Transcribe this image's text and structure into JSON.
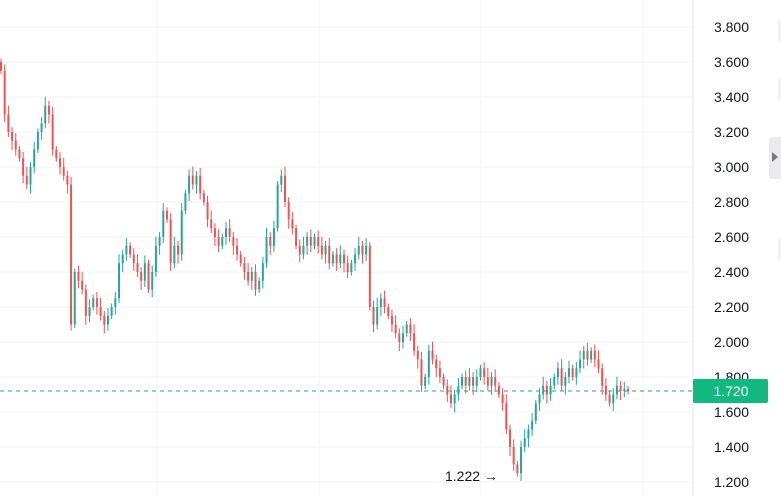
{
  "chart_data": {
    "type": "candlestick",
    "y_axis": {
      "ticks": [
        "3.800",
        "3.600",
        "3.400",
        "3.200",
        "3.000",
        "2.800",
        "2.600",
        "2.400",
        "2.200",
        "2.000",
        "1.800",
        "1.600",
        "1.400",
        "1.200"
      ],
      "range": [
        1.16,
        3.86
      ],
      "side": "right"
    },
    "grid": true,
    "current_price": {
      "label": "1.720",
      "value": 1.72
    },
    "annotation": {
      "label": "1.222 →",
      "value": 1.222
    },
    "colors": {
      "up": "#26a69a",
      "down": "#ef5350",
      "grid": "#f0f3fa",
      "axis_text": "#131722",
      "price_line": "#26a69a",
      "price_label_bg": "#11b981"
    },
    "closes": [
      3.55,
      3.3,
      3.2,
      3.15,
      3.1,
      3.05,
      2.95,
      2.9,
      3.0,
      3.1,
      3.2,
      3.25,
      3.35,
      3.3,
      3.1,
      3.05,
      3.0,
      2.95,
      2.9,
      2.1,
      2.4,
      2.35,
      2.3,
      2.15,
      2.2,
      2.25,
      2.2,
      2.15,
      2.1,
      2.15,
      2.2,
      2.25,
      2.45,
      2.5,
      2.55,
      2.5,
      2.45,
      2.4,
      2.35,
      2.45,
      2.3,
      2.4,
      2.55,
      2.6,
      2.75,
      2.7,
      2.45,
      2.55,
      2.5,
      2.75,
      2.85,
      2.95,
      2.9,
      2.95,
      2.85,
      2.8,
      2.7,
      2.65,
      2.6,
      2.55,
      2.6,
      2.65,
      2.6,
      2.55,
      2.5,
      2.45,
      2.4,
      2.35,
      2.4,
      2.3,
      2.35,
      2.45,
      2.6,
      2.55,
      2.65,
      2.9,
      2.95,
      2.8,
      2.7,
      2.65,
      2.55,
      2.5,
      2.55,
      2.6,
      2.55,
      2.6,
      2.55,
      2.5,
      2.55,
      2.45,
      2.5,
      2.45,
      2.5,
      2.45,
      2.4,
      2.45,
      2.5,
      2.55,
      2.5,
      2.55,
      2.2,
      2.1,
      2.2,
      2.25,
      2.2,
      2.15,
      2.1,
      2.05,
      2.0,
      2.05,
      2.1,
      2.05,
      1.95,
      1.9,
      1.75,
      1.8,
      1.95,
      1.9,
      1.85,
      1.8,
      1.75,
      1.7,
      1.65,
      1.7,
      1.75,
      1.8,
      1.75,
      1.8,
      1.75,
      1.8,
      1.85,
      1.8,
      1.75,
      1.8,
      1.75,
      1.7,
      1.65,
      1.5,
      1.4,
      1.3,
      1.25,
      1.4,
      1.45,
      1.5,
      1.55,
      1.65,
      1.7,
      1.75,
      1.7,
      1.75,
      1.8,
      1.85,
      1.75,
      1.8,
      1.85,
      1.8,
      1.85,
      1.9,
      1.95,
      1.9,
      1.95,
      1.9,
      1.85,
      1.75,
      1.7,
      1.65,
      1.7,
      1.75,
      1.72,
      1.73,
      1.72
    ]
  },
  "price_axis_ticks_label": "price-axis"
}
